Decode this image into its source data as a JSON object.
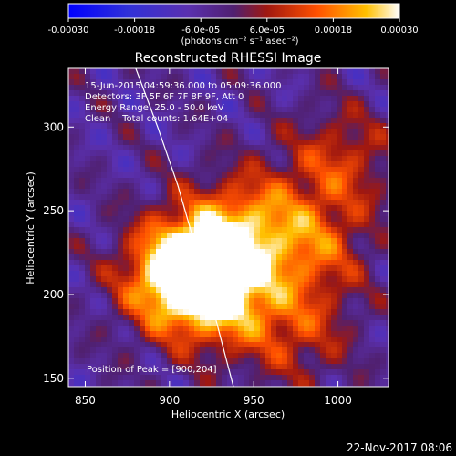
{
  "chart_data": {
    "type": "heatmap",
    "title": "Reconstructed RHESSI Image",
    "xlabel": "Heliocentric X (arcsec)",
    "ylabel": "Heliocentric Y (arcsec)",
    "xlim": [
      840,
      1030
    ],
    "ylim": [
      145,
      335
    ],
    "x_ticks": [
      "850",
      "900",
      "950",
      "1000"
    ],
    "y_ticks": [
      "150",
      "200",
      "250",
      "300"
    ],
    "colorbar": {
      "range": [
        -0.0003,
        0.0003
      ],
      "tick_labels": [
        "-0.00030",
        "-0.00018",
        "-6.0e-05",
        "6.0e-05",
        "0.00018",
        "0.00030"
      ],
      "unit_label": "(photons cm⁻² s⁻¹ asec⁻²)"
    },
    "info_lines": [
      "15-Jun-2015 04:59:36.000 to 05:09:36.000",
      "Detectors: 3F 5F 6F 7F 8F 9F, Att 0",
      "Energy Range: 25.0 - 50.0 keV",
      "Clean    Total counts: 1.64E+04"
    ],
    "peak_label": "Position of Peak = [900,204]",
    "peak_position": [
      900,
      204
    ],
    "source_centers": [
      {
        "x": 902,
        "y": 210,
        "strength": 1.0
      },
      {
        "x": 920,
        "y": 225,
        "strength": 0.85
      },
      {
        "x": 935,
        "y": 200,
        "strength": 0.7
      },
      {
        "x": 950,
        "y": 245,
        "strength": 0.6
      },
      {
        "x": 985,
        "y": 230,
        "strength": 0.55
      },
      {
        "x": 1000,
        "y": 280,
        "strength": 0.5
      },
      {
        "x": 975,
        "y": 180,
        "strength": 0.45
      }
    ],
    "limb_curve": [
      [
        880,
        335
      ],
      [
        893,
        300
      ],
      [
        905,
        265
      ],
      [
        915,
        230
      ],
      [
        925,
        195
      ],
      [
        934,
        160
      ],
      [
        938,
        145
      ]
    ]
  },
  "footer": {
    "date": "22-Nov-2017 08:06"
  },
  "colors": {
    "background": "#000000",
    "text": "#ffffff"
  }
}
